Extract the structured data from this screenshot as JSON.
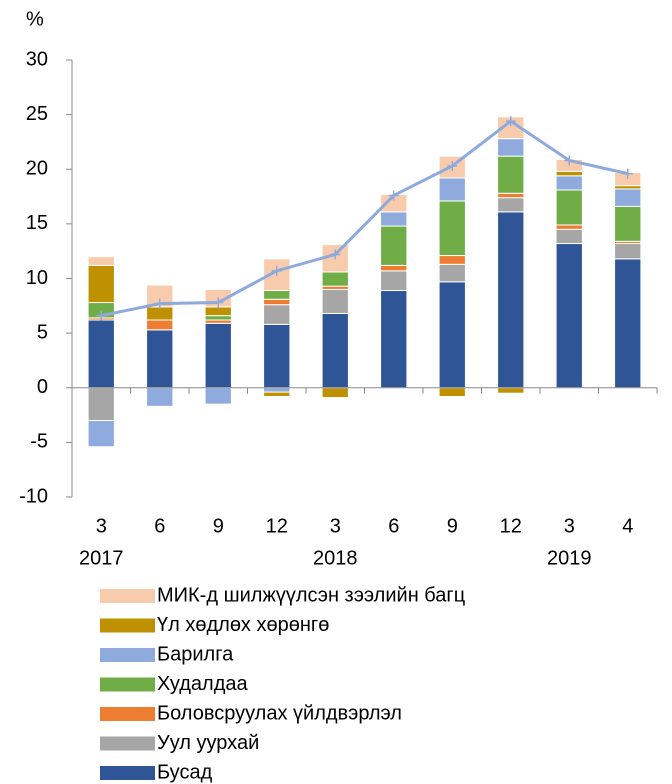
{
  "chart_data": {
    "type": "stacked_bar_line",
    "y_axis_label": "%",
    "categories": [
      "3",
      "6",
      "9",
      "12",
      "3",
      "6",
      "9",
      "12",
      "3",
      "4"
    ],
    "years": [
      "2017",
      null,
      null,
      null,
      "2018",
      null,
      null,
      null,
      "2019",
      null
    ],
    "series": [
      {
        "name": "Бусад",
        "color": "#2f5597",
        "values": [
          6.2,
          5.3,
          5.9,
          5.8,
          6.8,
          8.9,
          9.7,
          16.1,
          13.2,
          11.8
        ]
      },
      {
        "name": "Уул уурхай",
        "color": "#a6a6a6",
        "values": [
          -3.0,
          0,
          0,
          1.8,
          2.2,
          1.8,
          1.6,
          1.3,
          1.3,
          1.4
        ]
      },
      {
        "name": "Боловсруулах үйлдвэрлэл",
        "color": "#ed7d31",
        "values": [
          0.2,
          0.9,
          0.3,
          0.5,
          0.3,
          0.5,
          0.8,
          0.4,
          0.4,
          0.2
        ]
      },
      {
        "name": "Худалдаа",
        "color": "#70ad47",
        "values": [
          1.4,
          0,
          0.4,
          0.8,
          1.3,
          3.6,
          5.0,
          3.4,
          3.2,
          3.2
        ]
      },
      {
        "name": "Барилга",
        "color": "#8faadc",
        "values": [
          -2.4,
          -1.7,
          -1.5,
          -0.4,
          0,
          1.3,
          2.1,
          1.6,
          1.3,
          1.6
        ]
      },
      {
        "name": "Үл хөдлөх хөрөнгө",
        "color": "#bf9000",
        "values": [
          3.4,
          1.2,
          0.8,
          -0.4,
          -0.9,
          0,
          -0.8,
          -0.5,
          0.4,
          0.3
        ]
      },
      {
        "name": "МИК-д шилжүүлсэн зээлийн багц",
        "color": "#f8cbad",
        "values": [
          0.8,
          2.0,
          1.6,
          2.9,
          2.5,
          1.6,
          2.0,
          2.0,
          1.1,
          1.2
        ]
      }
    ],
    "line": {
      "color": "#8ea9db",
      "values": [
        6.6,
        7.7,
        7.8,
        10.7,
        12.2,
        17.6,
        20.3,
        24.4,
        20.8,
        19.6
      ]
    },
    "ylim": [
      -10,
      30
    ],
    "yticks": [
      -10,
      -5,
      0,
      5,
      10,
      15,
      20,
      25,
      30
    ]
  }
}
